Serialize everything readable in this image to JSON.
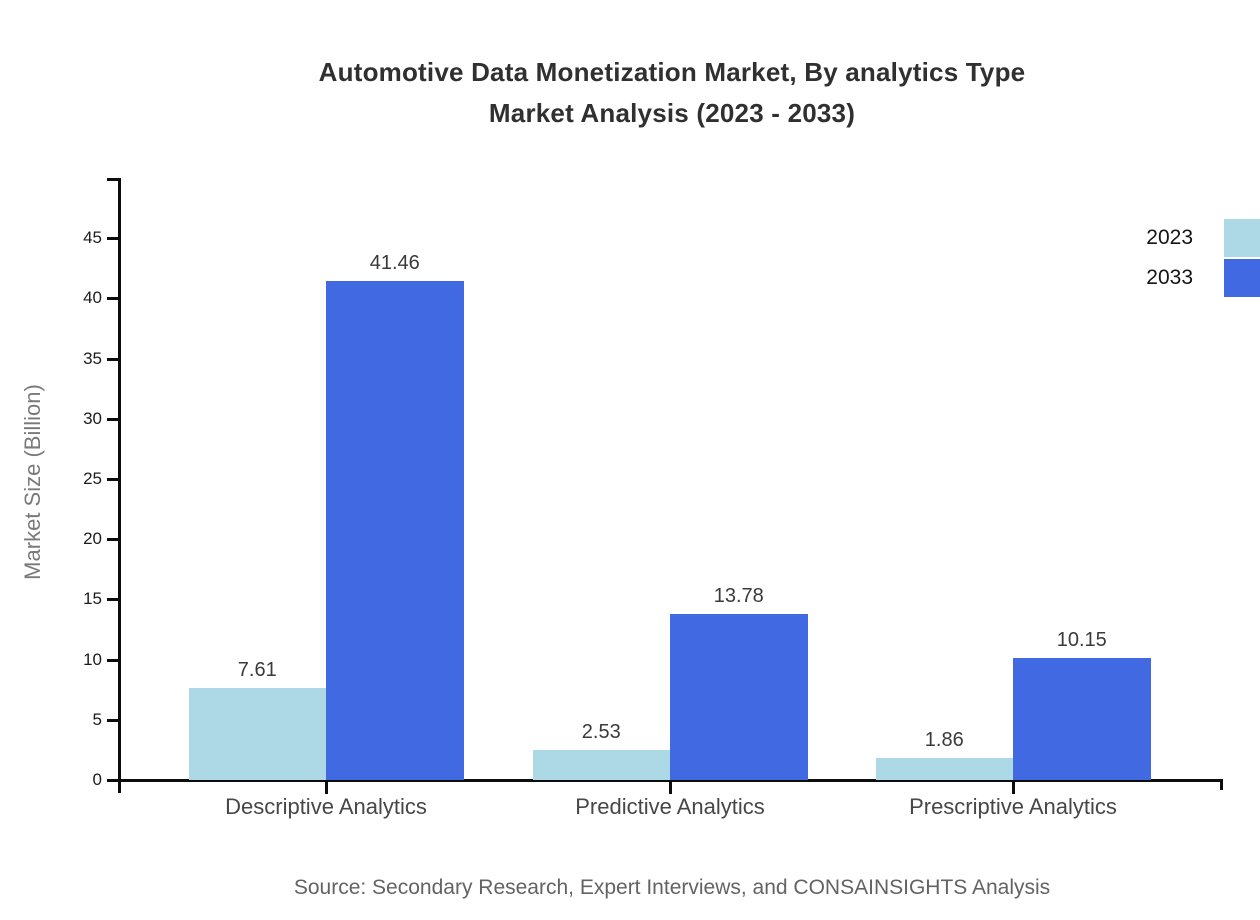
{
  "chart_data": {
    "type": "bar",
    "title_line1": "Automotive Data Monetization Market, By analytics Type",
    "title_line2": "Market Analysis (2023 - 2033)",
    "ylabel": "Market Size (Billion)",
    "xlabel": "",
    "categories": [
      "Descriptive Analytics",
      "Predictive Analytics",
      "Prescriptive Analytics"
    ],
    "series": [
      {
        "name": "2023",
        "color": "#ADD8E6",
        "values": [
          7.61,
          2.53,
          1.86
        ]
      },
      {
        "name": "2033",
        "color": "#4169E1",
        "values": [
          41.46,
          13.78,
          10.15
        ]
      }
    ],
    "ylim": [
      0,
      50
    ],
    "yticks": [
      0,
      5,
      10,
      15,
      20,
      25,
      30,
      35,
      40,
      45
    ],
    "grid": false,
    "legend_position": "top-right",
    "value_label_decimals": 2,
    "source": "Source: Secondary Research, Expert Interviews, and CONSAINSIGHTS Analysis"
  }
}
